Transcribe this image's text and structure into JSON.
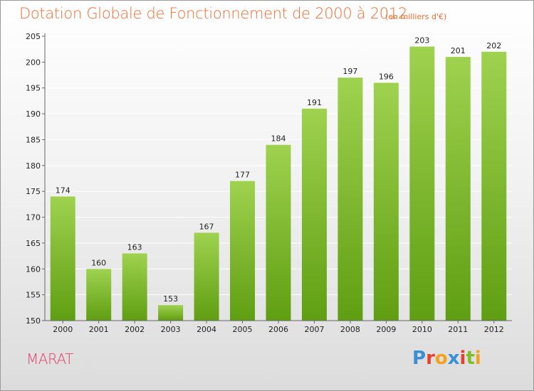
{
  "title": "Dotation Globale de Fonctionnement de 2000 à 2012",
  "subtitle": "(en milliers d'€)",
  "commune": "MARAT",
  "logo": {
    "letters": [
      "P",
      "r",
      "o",
      "x",
      "i",
      "t",
      "i"
    ],
    "colors": [
      "#3a8fd6",
      "#e8402f",
      "#f5a11c",
      "#3a8fd6",
      "#e8402f",
      "#7fbf2a",
      "#f5a11c"
    ]
  },
  "colors": {
    "bar_top": "#9fd24f",
    "bar_bottom": "#5f9e12",
    "axis": "#666666",
    "grid": "#ffffff",
    "label": "#222222"
  },
  "chart_data": {
    "type": "bar",
    "categories": [
      "2000",
      "2001",
      "2002",
      "2003",
      "2004",
      "2005",
      "2006",
      "2007",
      "2008",
      "2009",
      "2010",
      "2011",
      "2012"
    ],
    "values": [
      174,
      160,
      163,
      153,
      167,
      177,
      184,
      191,
      197,
      196,
      203,
      201,
      202
    ],
    "value_labels": [
      "174",
      "160",
      "163",
      "153",
      "167",
      "177",
      "184",
      "191",
      "197",
      "196",
      "203",
      "201",
      "202"
    ],
    "yticks": [
      "150",
      "155",
      "160",
      "165",
      "170",
      "175",
      "180",
      "185",
      "190",
      "195",
      "200",
      "205"
    ],
    "ylim": [
      150,
      205
    ],
    "grid": true,
    "title": "Dotation Globale de Fonctionnement de 2000 à 2012",
    "xlabel": "",
    "ylabel": ""
  }
}
